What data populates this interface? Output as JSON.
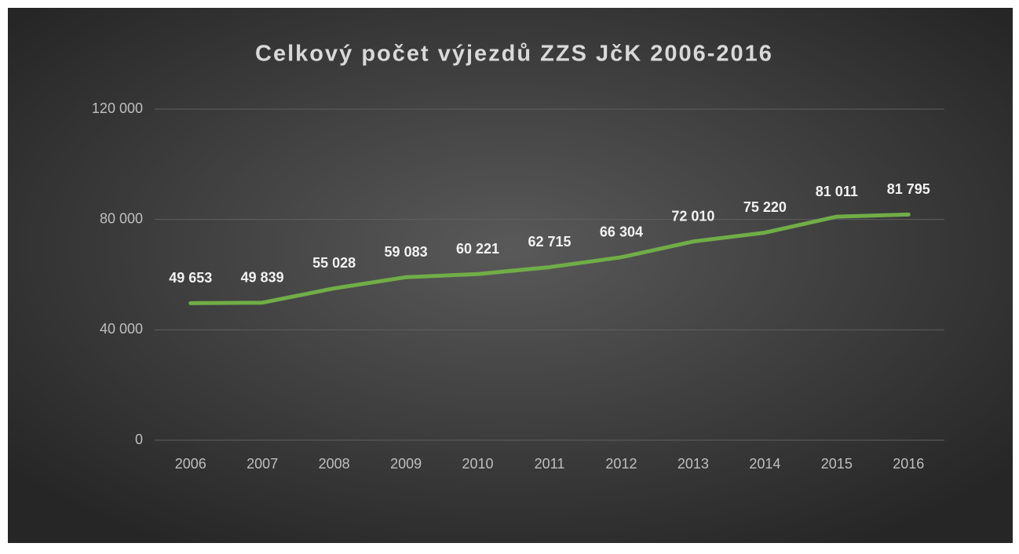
{
  "chart_data": {
    "type": "line",
    "title": "Celkový počet výjezdů ZZS JčK  2006-2016",
    "categories": [
      "2006",
      "2007",
      "2008",
      "2009",
      "2010",
      "2011",
      "2012",
      "2013",
      "2014",
      "2015",
      "2016"
    ],
    "values": [
      49653,
      49839,
      55028,
      59083,
      60221,
      62715,
      66304,
      72010,
      75220,
      81011,
      81795
    ],
    "value_labels": [
      "49 653",
      "49 839",
      "55 028",
      "59 083",
      "60 221",
      "62 715",
      "66 304",
      "72 010",
      "75 220",
      "81 011",
      "81 795"
    ],
    "color": "#70ad47",
    "ylim": [
      0,
      120000
    ],
    "yticks": [
      0,
      {
        "value": 40000,
        "label": "40 000"
      },
      {
        "value": 80000,
        "label": "80 000"
      },
      {
        "value": 120000,
        "label": "120 000"
      }
    ],
    "grid": true
  }
}
